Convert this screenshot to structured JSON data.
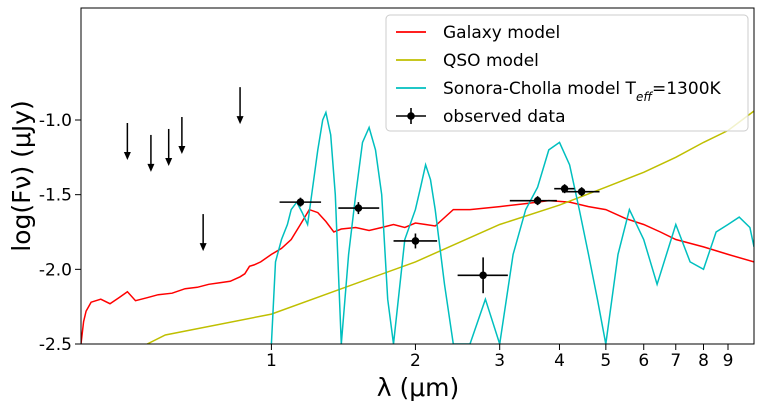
{
  "chart_data": {
    "type": "line",
    "title": "",
    "xlabel": "λ (μm)",
    "ylabel": "log(Fν) (μJy)",
    "xscale": "log",
    "xlim": [
      0.4,
      10.2
    ],
    "ylim": [
      -2.5,
      -0.25
    ],
    "x_ticks": [
      1,
      2,
      3,
      4,
      5,
      6,
      7,
      8,
      9
    ],
    "y_ticks": [
      -2.5,
      -2.0,
      -1.5,
      -1.0
    ],
    "y_tick_labels": [
      "-2.5",
      "-2.0",
      "-1.5",
      "-1.0"
    ],
    "legend": {
      "placement": "top-right",
      "entries": [
        {
          "label": "Galaxy model",
          "color": "#ff0000",
          "kind": "line"
        },
        {
          "label": "QSO model",
          "color": "#bfbf00",
          "kind": "line"
        },
        {
          "label": "Sonora-Cholla model T",
          "sub": "eff",
          "suffix": "=1300K",
          "color": "#00bfbf",
          "kind": "line"
        },
        {
          "label": "observed data",
          "color": "#000000",
          "kind": "errorbar"
        }
      ]
    },
    "series": [
      {
        "name": "Galaxy model",
        "color": "#ff0000",
        "points": [
          [
            0.4,
            -2.5
          ],
          [
            0.405,
            -2.35
          ],
          [
            0.41,
            -2.28
          ],
          [
            0.42,
            -2.22
          ],
          [
            0.44,
            -2.2
          ],
          [
            0.46,
            -2.23
          ],
          [
            0.48,
            -2.19
          ],
          [
            0.5,
            -2.15
          ],
          [
            0.52,
            -2.21
          ],
          [
            0.55,
            -2.19
          ],
          [
            0.58,
            -2.17
          ],
          [
            0.62,
            -2.16
          ],
          [
            0.66,
            -2.13
          ],
          [
            0.7,
            -2.12
          ],
          [
            0.74,
            -2.1
          ],
          [
            0.78,
            -2.09
          ],
          [
            0.82,
            -2.08
          ],
          [
            0.86,
            -2.05
          ],
          [
            0.88,
            -2.03
          ],
          [
            0.9,
            -1.98
          ],
          [
            0.92,
            -1.97
          ],
          [
            0.95,
            -1.95
          ],
          [
            1.0,
            -1.9
          ],
          [
            1.05,
            -1.86
          ],
          [
            1.1,
            -1.8
          ],
          [
            1.15,
            -1.7
          ],
          [
            1.2,
            -1.6
          ],
          [
            1.25,
            -1.62
          ],
          [
            1.3,
            -1.68
          ],
          [
            1.35,
            -1.75
          ],
          [
            1.4,
            -1.73
          ],
          [
            1.5,
            -1.72
          ],
          [
            1.6,
            -1.74
          ],
          [
            1.7,
            -1.72
          ],
          [
            1.8,
            -1.7
          ],
          [
            1.9,
            -1.72
          ],
          [
            2.0,
            -1.69
          ],
          [
            2.1,
            -1.7
          ],
          [
            2.2,
            -1.71
          ],
          [
            2.4,
            -1.6
          ],
          [
            2.6,
            -1.6
          ],
          [
            3.0,
            -1.58
          ],
          [
            3.4,
            -1.56
          ],
          [
            3.8,
            -1.54
          ],
          [
            4.2,
            -1.55
          ],
          [
            4.6,
            -1.58
          ],
          [
            5.0,
            -1.6
          ],
          [
            5.5,
            -1.66
          ],
          [
            6.0,
            -1.7
          ],
          [
            6.5,
            -1.75
          ],
          [
            7.0,
            -1.8
          ],
          [
            8.0,
            -1.85
          ],
          [
            9.0,
            -1.9
          ],
          [
            10.2,
            -1.95
          ]
        ]
      },
      {
        "name": "QSO model",
        "color": "#bfbf00",
        "points": [
          [
            0.55,
            -2.5
          ],
          [
            0.6,
            -2.44
          ],
          [
            1.0,
            -2.3
          ],
          [
            2.0,
            -1.95
          ],
          [
            3.0,
            -1.7
          ],
          [
            4.0,
            -1.57
          ],
          [
            5.0,
            -1.45
          ],
          [
            6.0,
            -1.35
          ],
          [
            7.0,
            -1.25
          ],
          [
            8.0,
            -1.15
          ],
          [
            9.0,
            -1.07
          ],
          [
            10.2,
            -0.94
          ]
        ]
      },
      {
        "name": "Sonora-Cholla model Teff=1300K",
        "color": "#00bfbf",
        "points": [
          [
            1.0,
            -2.5
          ],
          [
            1.02,
            -1.95
          ],
          [
            1.05,
            -1.8
          ],
          [
            1.08,
            -1.7
          ],
          [
            1.1,
            -1.6
          ],
          [
            1.13,
            -1.55
          ],
          [
            1.16,
            -1.62
          ],
          [
            1.19,
            -1.7
          ],
          [
            1.22,
            -1.45
          ],
          [
            1.25,
            -1.2
          ],
          [
            1.28,
            -1.0
          ],
          [
            1.3,
            -0.95
          ],
          [
            1.33,
            -1.1
          ],
          [
            1.36,
            -1.5
          ],
          [
            1.4,
            -2.5
          ],
          [
            1.45,
            -1.9
          ],
          [
            1.5,
            -1.5
          ],
          [
            1.55,
            -1.15
          ],
          [
            1.6,
            -1.05
          ],
          [
            1.65,
            -1.2
          ],
          [
            1.7,
            -1.5
          ],
          [
            1.75,
            -2.2
          ],
          [
            1.8,
            -2.5
          ],
          [
            1.9,
            -1.8
          ],
          [
            2.0,
            -1.6
          ],
          [
            2.05,
            -1.45
          ],
          [
            2.1,
            -1.3
          ],
          [
            2.15,
            -1.4
          ],
          [
            2.2,
            -1.6
          ],
          [
            2.3,
            -2.1
          ],
          [
            2.4,
            -2.5
          ],
          [
            2.6,
            -2.5
          ],
          [
            2.8,
            -2.2
          ],
          [
            3.0,
            -2.5
          ],
          [
            3.2,
            -1.9
          ],
          [
            3.4,
            -1.6
          ],
          [
            3.6,
            -1.45
          ],
          [
            3.8,
            -1.2
          ],
          [
            4.0,
            -1.15
          ],
          [
            4.2,
            -1.3
          ],
          [
            4.4,
            -1.6
          ],
          [
            4.6,
            -1.9
          ],
          [
            4.8,
            -2.2
          ],
          [
            5.0,
            -2.5
          ],
          [
            5.3,
            -1.9
          ],
          [
            5.6,
            -1.6
          ],
          [
            6.0,
            -1.8
          ],
          [
            6.4,
            -2.1
          ],
          [
            7.0,
            -1.7
          ],
          [
            7.5,
            -1.95
          ],
          [
            8.0,
            -2.0
          ],
          [
            8.5,
            -1.75
          ],
          [
            9.0,
            -1.7
          ],
          [
            9.5,
            -1.65
          ],
          [
            10.0,
            -1.72
          ],
          [
            10.2,
            -1.85
          ]
        ]
      }
    ],
    "observed_data": [
      {
        "x": 1.15,
        "y": -1.55,
        "xerr": [
          1.04,
          1.27
        ],
        "yerr": 0.03
      },
      {
        "x": 1.52,
        "y": -1.59,
        "xerr": [
          1.38,
          1.68
        ],
        "yerr": 0.04
      },
      {
        "x": 2.0,
        "y": -1.81,
        "xerr": [
          1.8,
          2.22
        ],
        "yerr": 0.05
      },
      {
        "x": 2.77,
        "y": -2.04,
        "xerr": [
          2.45,
          3.12
        ],
        "yerr": 0.12
      },
      {
        "x": 3.6,
        "y": -1.54,
        "xerr": [
          3.15,
          3.95
        ],
        "yerr": 0.03
      },
      {
        "x": 4.1,
        "y": -1.46,
        "xerr": [
          3.9,
          4.3
        ],
        "yerr": 0.03
      },
      {
        "x": 4.45,
        "y": -1.48,
        "xerr": [
          4.05,
          4.85
        ],
        "yerr": 0.03
      }
    ],
    "upper_limits": [
      {
        "x": 0.5,
        "y": -1.02
      },
      {
        "x": 0.56,
        "y": -1.1
      },
      {
        "x": 0.61,
        "y": -1.06
      },
      {
        "x": 0.65,
        "y": -0.98
      },
      {
        "x": 0.72,
        "y": -1.63
      },
      {
        "x": 0.86,
        "y": -0.78
      }
    ]
  }
}
